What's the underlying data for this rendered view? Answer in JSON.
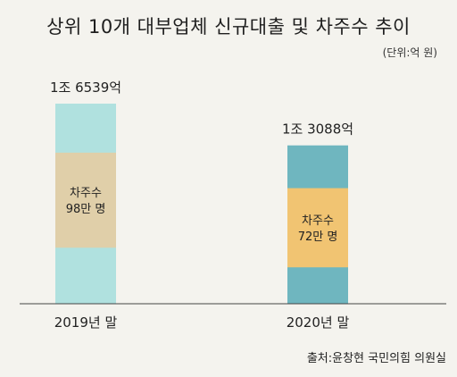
{
  "title": "상위 10개 대부업체 신규대출 및 차주수 추이",
  "unit": "(단위:억 원)",
  "source": "출처:윤창현 국민의힘 의원실",
  "chart_data": {
    "type": "bar",
    "categories": [
      "2019년 말",
      "2020년 말"
    ],
    "series": [
      {
        "name": "신규대출",
        "values": [
          16539,
          13088
        ]
      }
    ],
    "value_labels": [
      "1조 6539억",
      "1조 3088억"
    ],
    "borrowers": {
      "label": "차주수",
      "values": [
        98,
        72
      ],
      "value_labels": [
        "98만 명",
        "72만 명"
      ]
    },
    "ylim": [
      0,
      16539
    ],
    "grid": false,
    "colors": {
      "bar_2019": "#b0e1df",
      "bar_2020": "#6fb6bf",
      "band_2019": "#e0cfa9",
      "band_2020": "#f1c472"
    }
  }
}
